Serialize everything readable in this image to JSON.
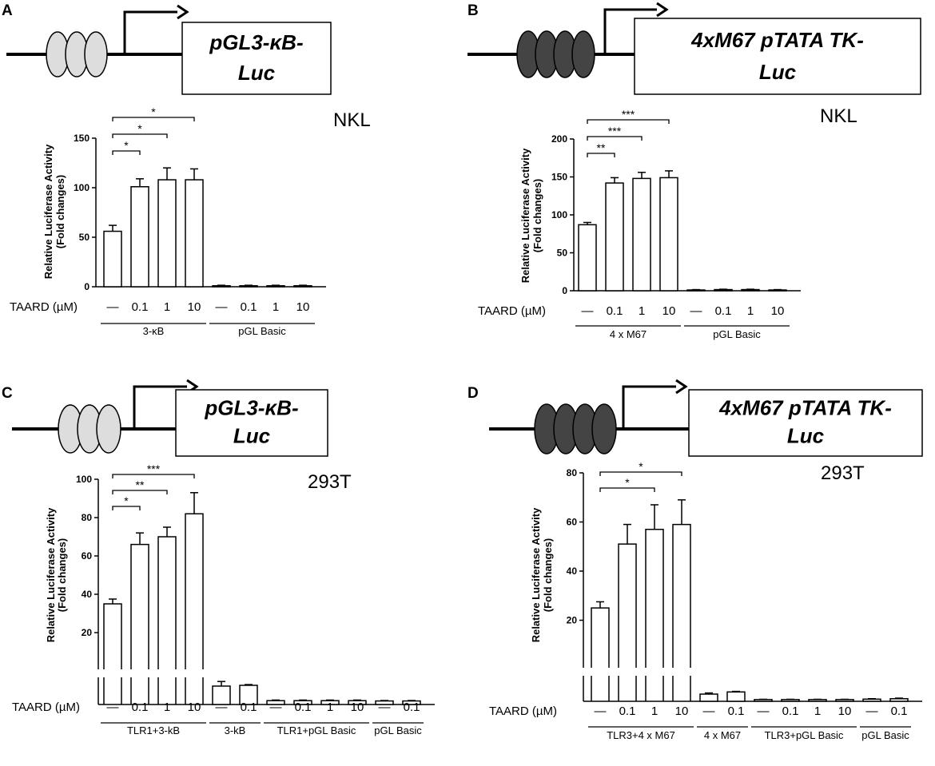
{
  "chart_data": [
    {
      "type": "bar",
      "panel_label": "A",
      "construct_label": [
        "pGL3-κB-",
        "Luc"
      ],
      "elements": 3,
      "element_color": "#dddddd",
      "cell_line": "NKL",
      "ylabel": [
        "Relative Luciferase Activity",
        "(Fold changes)"
      ],
      "ylim": [
        0,
        150
      ],
      "yticks": [
        0,
        50,
        100,
        150
      ],
      "treatment_label": "TAARD (µM)",
      "categories": [
        "—",
        "0.1",
        "1",
        "10",
        "—",
        "0.1",
        "1",
        "10"
      ],
      "groups": [
        {
          "label": "3-κB",
          "count": 4
        },
        {
          "label": "pGL Basic",
          "count": 4
        }
      ],
      "values": [
        56,
        101,
        108,
        108,
        1,
        1,
        1,
        1
      ],
      "errors": [
        6,
        8,
        12,
        11,
        0.5,
        0.5,
        0.5,
        0.5
      ],
      "significance": [
        {
          "from": 0,
          "to": 1,
          "label": "*"
        },
        {
          "from": 0,
          "to": 2,
          "label": "*"
        },
        {
          "from": 0,
          "to": 3,
          "label": "*"
        }
      ]
    },
    {
      "type": "bar",
      "panel_label": "B",
      "construct_label": [
        "4xM67 pTATA TK-",
        "Luc"
      ],
      "elements": 4,
      "element_color": "#444444",
      "cell_line": "NKL",
      "ylabel": [
        "Relative Luciferase Activity",
        "(Fold changes)"
      ],
      "ylim": [
        0,
        200
      ],
      "yticks": [
        0,
        50,
        100,
        150,
        200
      ],
      "treatment_label": "TAARD (µM)",
      "categories": [
        "—",
        "0.1",
        "1",
        "10",
        "—",
        "0.1",
        "1",
        "10"
      ],
      "groups": [
        {
          "label": "4 x M67",
          "count": 4
        },
        {
          "label": "pGL Basic",
          "count": 4
        }
      ],
      "values": [
        87,
        142,
        148,
        149,
        1,
        1.5,
        1.5,
        1
      ],
      "errors": [
        3,
        7,
        8,
        9,
        0.5,
        0.5,
        0.5,
        0.5
      ],
      "significance": [
        {
          "from": 0,
          "to": 1,
          "label": "**"
        },
        {
          "from": 0,
          "to": 2,
          "label": "***"
        },
        {
          "from": 0,
          "to": 3,
          "label": "***"
        }
      ]
    },
    {
      "type": "bar",
      "panel_label": "C",
      "construct_label": [
        "pGL3-κB-",
        "Luc"
      ],
      "elements": 3,
      "element_color": "#dddddd",
      "cell_line": "293T",
      "ylabel": [
        "Relative Luciferase Activity",
        "(Fold changes)"
      ],
      "ylim": [
        0,
        100
      ],
      "yticks": [
        20,
        40,
        60,
        80,
        100
      ],
      "axis_break": true,
      "treatment_label": "TAARD (µM)",
      "categories": [
        "—",
        "0.1",
        "1",
        "10",
        "—",
        "0.1",
        "—",
        "0.1",
        "1",
        "10",
        "—",
        "0.1"
      ],
      "groups": [
        {
          "label": "TLR1+3-kB",
          "count": 4
        },
        {
          "label": "3-kB",
          "count": 2
        },
        {
          "label": "TLR1+pGL Basic",
          "count": 4
        },
        {
          "label": "pGL Basic",
          "count": 2
        }
      ],
      "values": [
        35,
        66,
        70,
        82,
        12,
        12.5,
        2.5,
        2.5,
        2.5,
        2.5,
        2.3,
        2.3
      ],
      "errors": [
        2.5,
        6,
        5,
        11,
        3,
        0.5,
        0.4,
        0.4,
        0.4,
        0.4,
        0.3,
        0.3
      ],
      "significance": [
        {
          "from": 0,
          "to": 1,
          "label": "*"
        },
        {
          "from": 0,
          "to": 2,
          "label": "**"
        },
        {
          "from": 0,
          "to": 3,
          "label": "***"
        }
      ]
    },
    {
      "type": "bar",
      "panel_label": "D",
      "construct_label": [
        "4xM67 pTATA TK-",
        "Luc"
      ],
      "elements": 4,
      "element_color": "#444444",
      "cell_line": "293T",
      "ylabel": [
        "Relative Luciferase Activity",
        "(Fold changes)"
      ],
      "ylim": [
        0,
        80
      ],
      "yticks": [
        20,
        40,
        60,
        80
      ],
      "axis_break": true,
      "treatment_label": "TAARD (µM)",
      "categories": [
        "—",
        "0.1",
        "1",
        "10",
        "—",
        "0.1",
        "—",
        "0.1",
        "1",
        "10",
        "—",
        "0.1"
      ],
      "groups": [
        {
          "label": "TLR3+4 x M67",
          "count": 4
        },
        {
          "label": "4 x M67",
          "count": 2
        },
        {
          "label": "TLR3+pGL Basic",
          "count": 4
        },
        {
          "label": "pGL Basic",
          "count": 2
        }
      ],
      "values": [
        25,
        51,
        57,
        59,
        5,
        6.5,
        1.2,
        1.2,
        1.2,
        1.2,
        1.5,
        1.8
      ],
      "errors": [
        2.5,
        8,
        10,
        10,
        0.8,
        0.4,
        0.2,
        0.2,
        0.2,
        0.2,
        0.3,
        0.4
      ],
      "significance": [
        {
          "from": 0,
          "to": 2,
          "label": "*"
        },
        {
          "from": 0,
          "to": 3,
          "label": "*"
        }
      ]
    }
  ]
}
